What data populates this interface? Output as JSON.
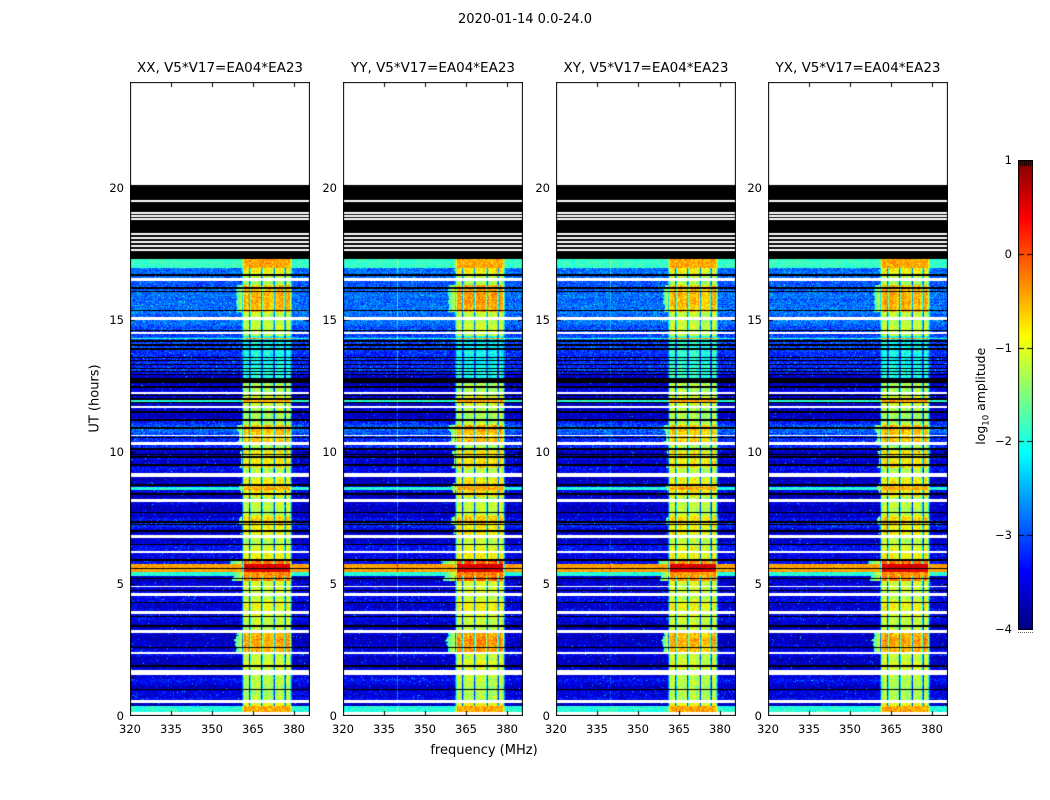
{
  "chart_data": {
    "type": "heatmap",
    "title": "2020-01-14 0.0-24.0",
    "xlabel": "frequency (MHz)",
    "ylabel": "UT (hours)",
    "panels": [
      {
        "title": "XX, V5*V17=EA04*EA23",
        "seed": 101,
        "band_gain": 1.0,
        "vline_gain": 0.05
      },
      {
        "title": "YY, V5*V17=EA04*EA23",
        "seed": 202,
        "band_gain": 1.12,
        "vline_gain": 0.3
      },
      {
        "title": "XY, V5*V17=EA04*EA23",
        "seed": 303,
        "band_gain": 0.88,
        "vline_gain": 0.16
      },
      {
        "title": "YX, V5*V17=EA04*EA23",
        "seed": 404,
        "band_gain": 1.02,
        "vline_gain": 0.05
      }
    ],
    "x": {
      "lim": [
        320,
        386
      ],
      "ticks": [
        320,
        335,
        350,
        365,
        380
      ],
      "tick_labels": [
        "320",
        "335",
        "350",
        "365",
        "380"
      ]
    },
    "y": {
      "lim": [
        0,
        24
      ],
      "ticks": [
        0,
        5,
        10,
        15,
        20
      ],
      "tick_labels": [
        "0",
        "5",
        "10",
        "15",
        "20"
      ]
    },
    "colorbar": {
      "colormap": "jet",
      "lim": [
        -4,
        1
      ],
      "ticks": [
        1,
        0,
        -1,
        -2,
        -3,
        -4
      ],
      "tick_labels": [
        "1",
        "0",
        "−1",
        "−2",
        "−3",
        "−4"
      ],
      "label_parts": [
        "log",
        "10",
        " amplitude"
      ]
    },
    "seed_shared": 1337,
    "features": {
      "no_data_ut": [
        20.1,
        24
      ],
      "black_band_ut": [
        17.3,
        20.1
      ],
      "black_band_white_lines_ut": [
        19.5,
        19.05,
        18.93,
        18.8,
        18.25,
        18.1,
        17.95,
        17.8,
        17.65
      ],
      "surface_row_ut": [
        16.95,
        17.3
      ],
      "rfi_band_mhz": [
        361,
        379.5
      ],
      "rfi_notches_mhz": [
        363.9,
        368.3,
        372.9,
        376.9
      ],
      "faint_vline_mhz": 340,
      "white_gaps_ut": [
        [
          0.05,
          0.17
        ],
        [
          0.5,
          0.6
        ],
        [
          1.55,
          1.73
        ],
        [
          2.33,
          2.43
        ],
        [
          3.15,
          3.24
        ],
        [
          3.87,
          3.99
        ],
        [
          4.56,
          4.66
        ],
        [
          4.88,
          4.94
        ],
        [
          6.18,
          6.26
        ],
        [
          6.74,
          6.84
        ],
        [
          8.1,
          8.22
        ],
        [
          9.05,
          9.18
        ],
        [
          10.25,
          10.36
        ],
        [
          11.65,
          11.73
        ],
        [
          12.18,
          12.27
        ],
        [
          14.45,
          14.55
        ],
        [
          15.0,
          15.1
        ],
        [
          16.45,
          16.57
        ]
      ],
      "black_lines_ut": [
        1.0,
        1.9,
        2.6,
        3.4,
        4.3,
        4.75,
        5.2,
        5.9,
        6.5,
        7.0,
        7.35,
        7.7,
        8.4,
        8.75,
        9.5,
        9.8,
        10.1,
        10.9,
        11.2,
        11.5,
        12.0,
        12.45,
        13.15,
        13.3,
        13.45,
        13.9,
        14.05,
        14.2,
        15.35,
        16.2,
        16.7
      ],
      "thick_black_ut": [
        [
          12.6,
          12.78
        ]
      ],
      "bright_rows_ut": [
        [
          0.17,
          0.36
        ],
        [
          5.3,
          5.45
        ],
        [
          8.55,
          8.65
        ],
        [
          11.85,
          12.0
        ]
      ],
      "red_rows_ut": [
        [
          5.45,
          5.75
        ]
      ],
      "band_boost_ut": [
        [
          0.1,
          0.5,
          0.35
        ],
        [
          2.4,
          3.15,
          0.55
        ],
        [
          5.1,
          5.9,
          0.75
        ],
        [
          6.9,
          7.6,
          0.3
        ],
        [
          8.3,
          9.0,
          0.45
        ],
        [
          9.4,
          10.05,
          0.5
        ],
        [
          10.3,
          11.0,
          0.65
        ],
        [
          11.8,
          12.1,
          0.3
        ],
        [
          12.7,
          14.4,
          -0.75
        ],
        [
          15.3,
          16.3,
          0.75
        ],
        [
          16.6,
          17.3,
          0.3
        ]
      ]
    }
  }
}
